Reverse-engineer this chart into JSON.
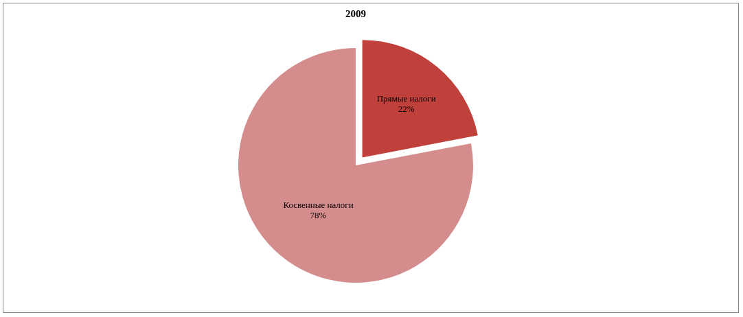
{
  "chart_data": {
    "type": "pie",
    "title": "2009",
    "categories": [
      "Прямые налоги",
      "Косвенные налоги"
    ],
    "values": [
      22,
      78
    ],
    "colors": [
      "#c0403c",
      "#d48c8c"
    ],
    "value_labels": [
      "22%",
      "78%"
    ],
    "legend": false
  }
}
